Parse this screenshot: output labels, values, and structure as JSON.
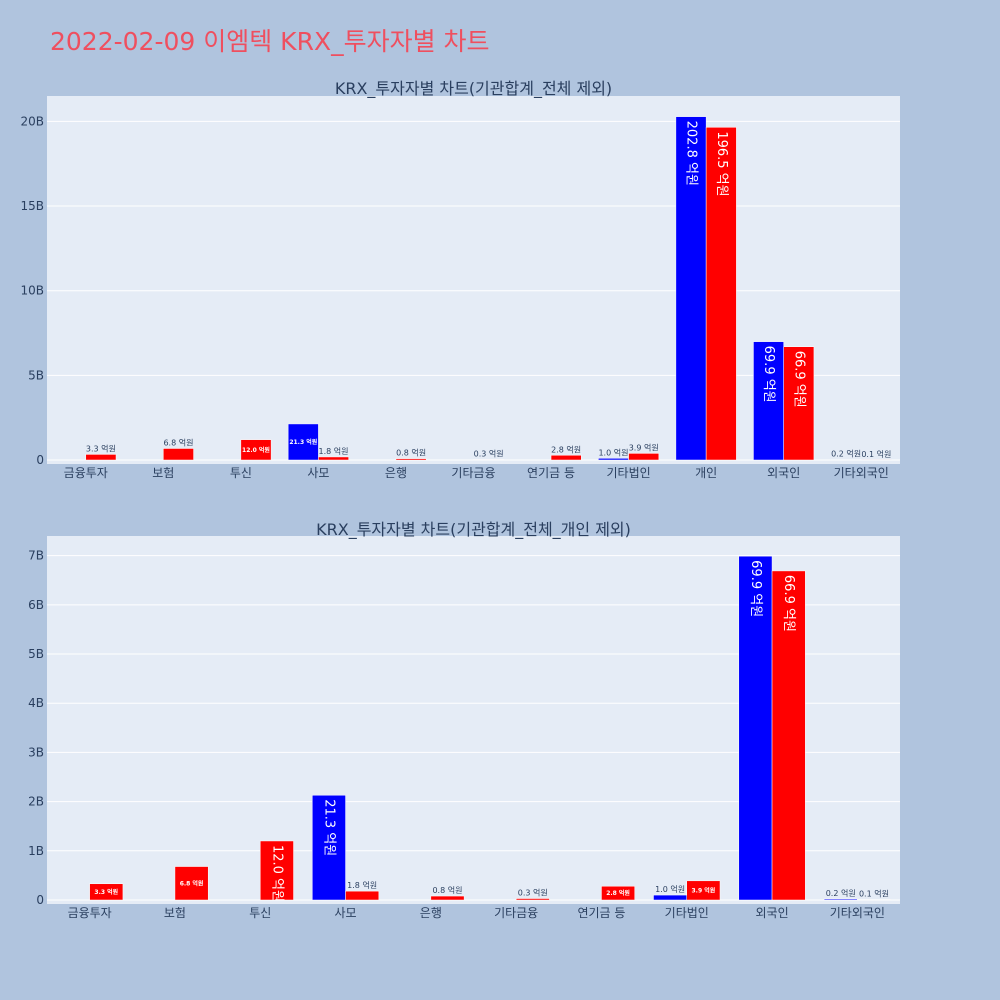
{
  "page": {
    "title": "2022-02-09 이엠텍 KRX_투자자별 차트"
  },
  "colors": {
    "background": "#b0c4de",
    "plot_bg": "#e5ecf6",
    "title": "#ef4f5f",
    "buy": "#0000ff",
    "sell": "#ff0000",
    "text": "#2a3f5f"
  },
  "chart_data": [
    {
      "type": "bar",
      "title": "KRX_투자자별 차트(기관합계_전체 제외)",
      "categories": [
        "금융투자",
        "보험",
        "투신",
        "사모",
        "은행",
        "기타금융",
        "연기금 등",
        "기타법인",
        "개인",
        "외국인",
        "기타외국인"
      ],
      "ylim": [
        0,
        21.5
      ],
      "yticks": [
        0,
        5,
        10,
        15,
        20
      ],
      "ytick_labels": [
        "0",
        "5B",
        "10B",
        "15B",
        "20B"
      ],
      "grid": true,
      "series": [
        {
          "color": "#0000ff",
          "values": [
            0,
            0,
            0,
            2.13,
            0,
            0,
            0,
            0.1,
            20.28,
            6.99,
            0.02
          ],
          "labels": [
            "",
            "",
            "",
            "21.3 억원",
            "",
            "",
            "",
            "1.0 억원",
            "202.8 억원",
            "69.9 억원",
            "0.2 억원"
          ]
        },
        {
          "color": "#ff0000",
          "values": [
            0.33,
            0.68,
            1.2,
            0.18,
            0.08,
            0.03,
            0.28,
            0.39,
            19.65,
            6.69,
            0.01
          ],
          "labels": [
            "3.3 억원",
            "6.8 억원",
            "12.0 억원",
            "1.8 억원",
            "0.8 억원",
            "0.3 억원",
            "2.8 억원",
            "3.9 억원",
            "196.5 억원",
            "66.9 억원",
            "0.1 억원"
          ]
        }
      ]
    },
    {
      "type": "bar",
      "title": "KRX_투자자별 차트(기관합계_전체_개인 제외)",
      "categories": [
        "금융투자",
        "보험",
        "투신",
        "사모",
        "은행",
        "기타금융",
        "연기금 등",
        "기타법인",
        "외국인",
        "기타외국인"
      ],
      "ylim": [
        0,
        7.4
      ],
      "yticks": [
        0,
        1,
        2,
        3,
        4,
        5,
        6,
        7
      ],
      "ytick_labels": [
        "0",
        "1B",
        "2B",
        "3B",
        "4B",
        "5B",
        "6B",
        "7B"
      ],
      "grid": true,
      "series": [
        {
          "color": "#0000ff",
          "values": [
            0,
            0,
            0,
            2.13,
            0,
            0,
            0,
            0.1,
            6.99,
            0.02
          ],
          "labels": [
            "",
            "",
            "",
            "21.3 억원",
            "",
            "",
            "",
            "1.0 억원",
            "69.9 억원",
            "0.2 억원"
          ]
        },
        {
          "color": "#ff0000",
          "values": [
            0.33,
            0.68,
            1.2,
            0.18,
            0.08,
            0.03,
            0.28,
            0.39,
            6.69,
            0.01
          ],
          "labels": [
            "3.3 억원",
            "6.8 억원",
            "12.0 억원",
            "1.8 억원",
            "0.8 억원",
            "0.3 억원",
            "2.8 억원",
            "3.9 억원",
            "66.9 억원",
            "0.1 억원"
          ]
        }
      ]
    }
  ]
}
